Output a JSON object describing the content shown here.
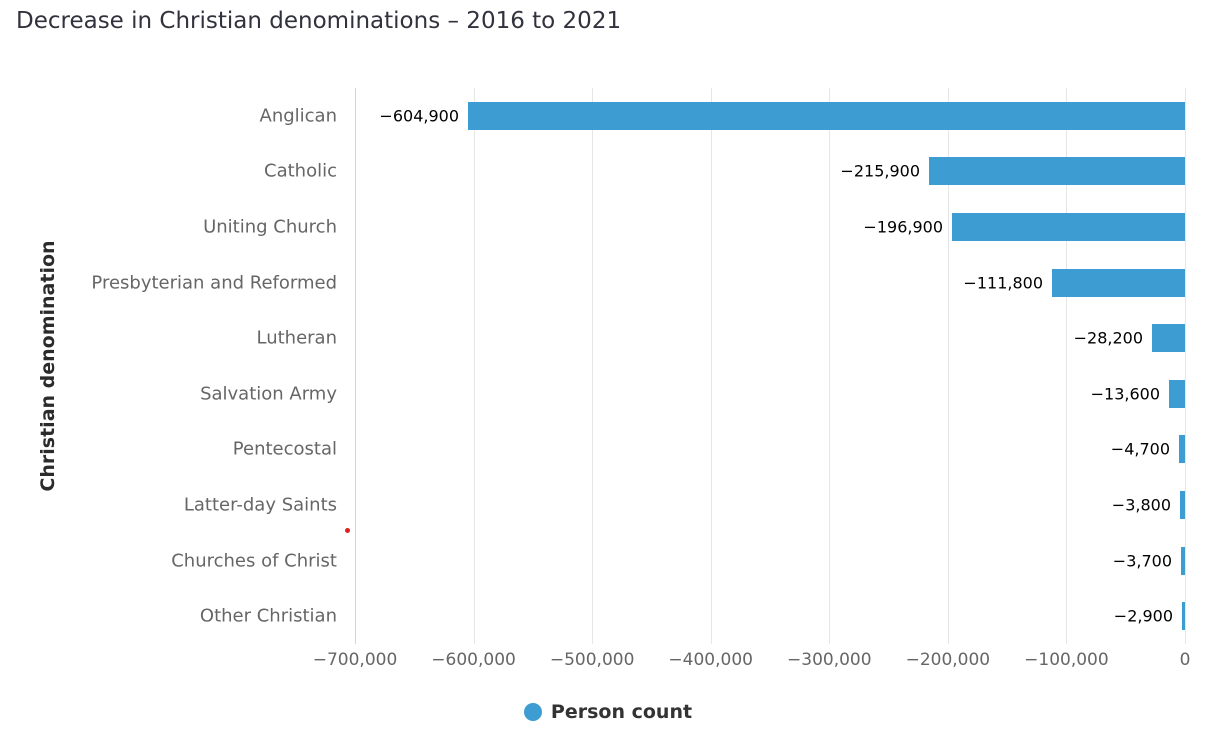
{
  "title": "Decrease in Christian denominations – 2016 to 2021",
  "legend": {
    "items": [
      {
        "label": "Person count",
        "marker_icon": "circle",
        "color": "#3d9cd2"
      }
    ]
  },
  "annotations": {
    "red_dot": {
      "color": "#e12020"
    }
  },
  "colors": {
    "bar": "#3d9cd2",
    "grid": "#e6e6e6",
    "axis_line": "#ccd6eb",
    "title_text": "#32323e",
    "category_text": "#666666",
    "tick_text": "#666666",
    "value_text": "#000000",
    "legend_text": "#333333"
  },
  "chart_data": {
    "type": "bar",
    "orientation": "horizontal",
    "title": "Decrease in Christian denominations – 2016 to 2021",
    "xlabel": "",
    "ylabel": "Christian denomination",
    "categories": [
      "Anglican",
      "Catholic",
      "Uniting Church",
      "Presbyterian and Reformed",
      "Lutheran",
      "Salvation Army",
      "Pentecostal",
      "Latter-day Saints",
      "Churches of Christ",
      "Other Christian"
    ],
    "series": [
      {
        "name": "Person count",
        "values": [
          -604900,
          -215900,
          -196900,
          -111800,
          -28200,
          -13600,
          -4700,
          -3800,
          -3700,
          -2900
        ]
      }
    ],
    "value_labels": [
      "−604,900",
      "−215,900",
      "−196,900",
      "−111,800",
      "−28,200",
      "−13,600",
      "−4,700",
      "−3,800",
      "−3,700",
      "−2,900"
    ],
    "xlim": [
      -700000,
      0
    ],
    "x_ticks": [
      -700000,
      -600000,
      -500000,
      -400000,
      -300000,
      -200000,
      -100000,
      0
    ],
    "x_tick_labels": [
      "−700,000",
      "−600,000",
      "−500,000",
      "−400,000",
      "−300,000",
      "−200,000",
      "−100,000",
      "0"
    ],
    "grid": true,
    "legend_position": "bottom",
    "bar_color": "#3d9cd2"
  }
}
